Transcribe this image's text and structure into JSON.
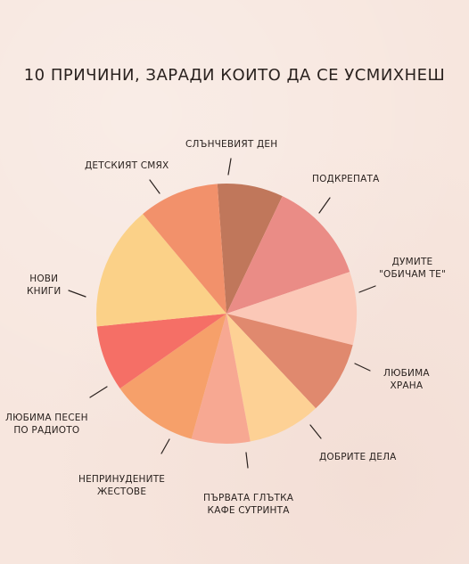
{
  "chart_data": {
    "type": "pie",
    "title": "10 ПРИЧИНИ, ЗАРАДИ КОИТО ДА СЕ УСМИХНЕШ",
    "slices": [
      {
        "label": "СЛЪНЧЕВИЯТ ДЕН",
        "value": 9,
        "color": "#c0775b"
      },
      {
        "label": "ПОДКРЕПАТА",
        "value": 14,
        "color": "#ea8c86"
      },
      {
        "label": "ДУМИТЕ \"ОБИЧАМ ТЕ\"",
        "value": 10,
        "color": "#fbc8b7"
      },
      {
        "label": "ЛЮБИМА ХРАНА",
        "value": 10,
        "color": "#e0896e"
      },
      {
        "label": "ДОБРИТЕ ДЕЛА",
        "value": 10,
        "color": "#fdd195"
      },
      {
        "label": "ПЪРВАТА ГЛЪТКА КАФЕ СУТРИНТА",
        "value": 8,
        "color": "#f7a892"
      },
      {
        "label": "НЕПРИНУДЕНИТЕ ЖЕСТОВЕ",
        "value": 12,
        "color": "#f6a06a"
      },
      {
        "label": "ЛЮБИМА ПЕСЕН ПО РАДИОТО",
        "value": 9,
        "color": "#f56f66"
      },
      {
        "label": "НОВИ КНИГИ",
        "value": 17,
        "color": "#fbd188"
      },
      {
        "label": "ДЕТСКИЯТ СМЯХ",
        "value": 11,
        "color": "#f2916b"
      }
    ]
  },
  "labels": {
    "l0": "СЛЪНЧЕВИЯТ ДЕН",
    "l1": "ПОДКРЕПАТА",
    "l2": "ДУМИТЕ\n\"ОБИЧАМ ТЕ\"",
    "l3": "ЛЮБИМА\nХРАНА",
    "l4": "ДОБРИТЕ ДЕЛА",
    "l5": "ПЪРВАТА ГЛЪТКА\nКАФЕ СУТРИНТА",
    "l6": "НЕПРИНУДЕНИТЕ\nЖЕСТОВЕ",
    "l7": "ЛЮБИМА ПЕСЕН\nПО РАДИОТО",
    "l8": "НОВИ\nКНИГИ",
    "l9": "ДЕТСКИЯТ СМЯХ"
  },
  "colors": {
    "background": "#f7e6de",
    "ink": "#2a221f"
  }
}
